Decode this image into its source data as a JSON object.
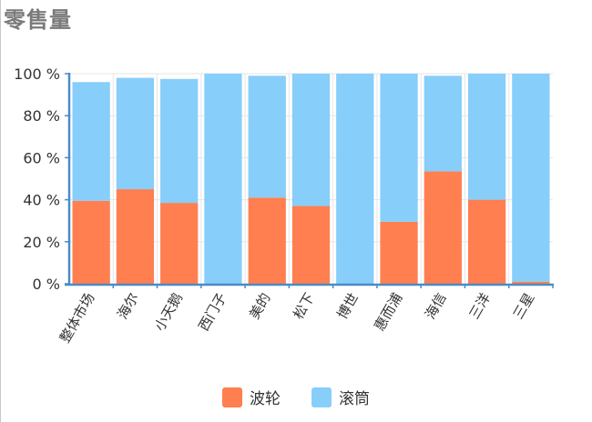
{
  "title": "零售量",
  "colors": {
    "series1": "#ff7f50",
    "series2": "#87cefa",
    "axis": "#4b8bc4",
    "grid": "#e6e6e6"
  },
  "chart_data": {
    "type": "bar",
    "stacked": true,
    "categories": [
      "整体市场",
      "海尔",
      "小天鹅",
      "西门子",
      "美的",
      "松下",
      "博世",
      "惠而浦",
      "海信",
      "三洋",
      "三星"
    ],
    "series": [
      {
        "name": "波轮",
        "values": [
          39.5,
          45,
          38.5,
          0,
          41,
          37,
          0,
          29.5,
          53.5,
          40,
          1
        ]
      },
      {
        "name": "滚筒",
        "values": [
          56.5,
          53,
          59,
          100,
          58,
          63,
          100,
          70.5,
          45.5,
          60,
          99
        ]
      }
    ],
    "ylim": [
      0,
      100
    ],
    "yticks": [
      0,
      20,
      40,
      60,
      80,
      100
    ],
    "ytick_suffix": " %",
    "xlabel": "",
    "ylabel": "",
    "grid": true,
    "legend_position": "bottom"
  },
  "legend": [
    {
      "label": "波轮",
      "color": "#ff7f50"
    },
    {
      "label": "滚筒",
      "color": "#87cefa"
    }
  ]
}
